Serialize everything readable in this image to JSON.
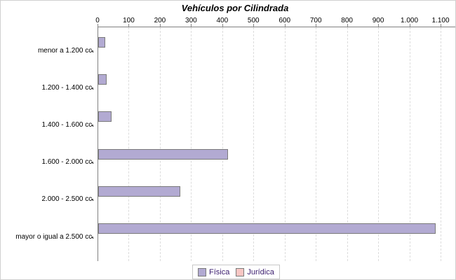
{
  "title": "Vehículos por Cilindrada",
  "chart_data": {
    "type": "bar",
    "orientation": "horizontal",
    "title": "Vehículos por Cilindrada",
    "categories": [
      "menor a 1.200 cc.",
      "1.200 - 1.400 cc.",
      "1.400 - 1.600 cc.",
      "1.600 - 2.000 cc.",
      "2.000 - 2.500 cc.",
      "mayor o igual a 2.500 cc."
    ],
    "series": [
      {
        "name": "Física",
        "color": "#b2aad2",
        "values": [
          20,
          25,
          40,
          415,
          260,
          1080
        ]
      },
      {
        "name": "Jurídica",
        "color": "#f9c7c4",
        "values": [
          0,
          0,
          0,
          0,
          0,
          0
        ]
      }
    ],
    "xlim": [
      0,
      1100
    ],
    "x_tick_interval": 100,
    "x_tick_labels": [
      "0",
      "100",
      "200",
      "300",
      "400",
      "500",
      "600",
      "700",
      "800",
      "900",
      "1.000",
      "1.100"
    ],
    "axis_position": "top",
    "grid": "vertical-dashed",
    "legend_position": "bottom"
  },
  "colors": {
    "fisica": "#b2aad2",
    "juridica": "#f9c7c4",
    "bar_border": "#7b7b7b",
    "axis": "#808080",
    "grid": "#dcdcdc",
    "legend_text": "#3a1c6e",
    "legend_border": "#c8c8c8",
    "text": "#000000"
  }
}
